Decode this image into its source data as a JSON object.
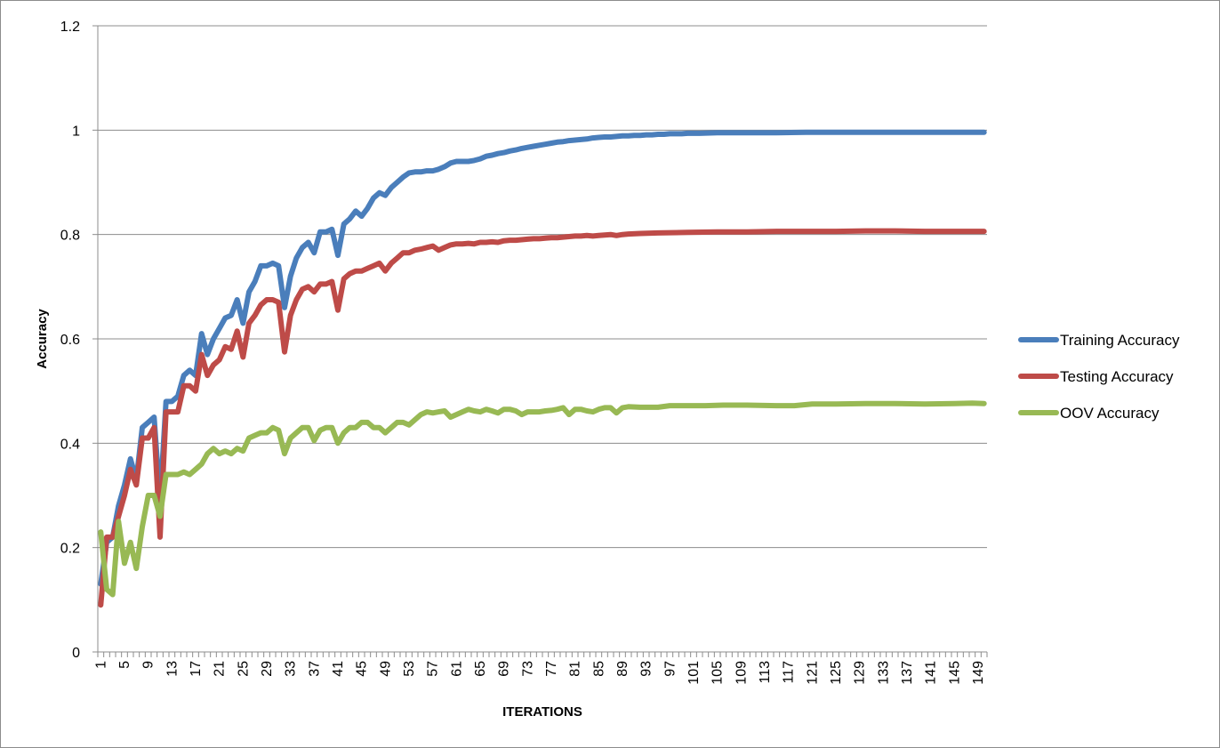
{
  "chart_data": {
    "type": "line",
    "title": "",
    "xlabel": "ITERATIONS",
    "ylabel": "Accuracy",
    "ylim": [
      0,
      1.2
    ],
    "yticks": [
      "0",
      "0.2",
      "0.4",
      "0.6",
      "0.8",
      "1",
      "1.2"
    ],
    "xlim": [
      1,
      150
    ],
    "xtick_labels": [
      "1",
      "5",
      "9",
      "13",
      "17",
      "21",
      "25",
      "29",
      "33",
      "37",
      "41",
      "45",
      "49",
      "53",
      "57",
      "61",
      "65",
      "69",
      "73",
      "77",
      "81",
      "85",
      "89",
      "93",
      "97",
      "101",
      "105",
      "109",
      "113",
      "117",
      "121",
      "125",
      "129",
      "133",
      "137",
      "141",
      "145",
      "149"
    ],
    "grid": "horizontal",
    "legend_position": "right",
    "colors": {
      "training": "#4a7ebb",
      "testing": "#be4b48",
      "oov": "#98b954",
      "grid": "#8c8c8c",
      "axis": "#8c8c8c"
    },
    "series": [
      {
        "name": "Training Accuracy",
        "color": "#4a7ebb",
        "points": [
          [
            1,
            0.13
          ],
          [
            2,
            0.21
          ],
          [
            3,
            0.22
          ],
          [
            4,
            0.28
          ],
          [
            5,
            0.32
          ],
          [
            6,
            0.37
          ],
          [
            7,
            0.33
          ],
          [
            8,
            0.43
          ],
          [
            9,
            0.44
          ],
          [
            10,
            0.45
          ],
          [
            11,
            0.29
          ],
          [
            12,
            0.48
          ],
          [
            13,
            0.48
          ],
          [
            14,
            0.49
          ],
          [
            15,
            0.53
          ],
          [
            16,
            0.54
          ],
          [
            17,
            0.53
          ],
          [
            18,
            0.61
          ],
          [
            19,
            0.57
          ],
          [
            20,
            0.6
          ],
          [
            21,
            0.62
          ],
          [
            22,
            0.64
          ],
          [
            23,
            0.645
          ],
          [
            24,
            0.675
          ],
          [
            25,
            0.63
          ],
          [
            26,
            0.69
          ],
          [
            27,
            0.71
          ],
          [
            28,
            0.74
          ],
          [
            29,
            0.74
          ],
          [
            30,
            0.745
          ],
          [
            31,
            0.74
          ],
          [
            32,
            0.66
          ],
          [
            33,
            0.72
          ],
          [
            34,
            0.755
          ],
          [
            35,
            0.775
          ],
          [
            36,
            0.785
          ],
          [
            37,
            0.765
          ],
          [
            38,
            0.805
          ],
          [
            39,
            0.805
          ],
          [
            40,
            0.81
          ],
          [
            41,
            0.76
          ],
          [
            42,
            0.82
          ],
          [
            43,
            0.83
          ],
          [
            44,
            0.845
          ],
          [
            45,
            0.835
          ],
          [
            46,
            0.85
          ],
          [
            47,
            0.87
          ],
          [
            48,
            0.88
          ],
          [
            49,
            0.875
          ],
          [
            50,
            0.89
          ],
          [
            51,
            0.9
          ],
          [
            52,
            0.91
          ],
          [
            53,
            0.918
          ],
          [
            54,
            0.92
          ],
          [
            55,
            0.92
          ],
          [
            56,
            0.922
          ],
          [
            57,
            0.922
          ],
          [
            58,
            0.925
          ],
          [
            59,
            0.93
          ],
          [
            60,
            0.937
          ],
          [
            61,
            0.94
          ],
          [
            62,
            0.94
          ],
          [
            63,
            0.94
          ],
          [
            64,
            0.942
          ],
          [
            65,
            0.945
          ],
          [
            66,
            0.95
          ],
          [
            67,
            0.952
          ],
          [
            68,
            0.955
          ],
          [
            69,
            0.957
          ],
          [
            70,
            0.96
          ],
          [
            71,
            0.962
          ],
          [
            72,
            0.965
          ],
          [
            73,
            0.967
          ],
          [
            74,
            0.969
          ],
          [
            75,
            0.971
          ],
          [
            76,
            0.973
          ],
          [
            77,
            0.975
          ],
          [
            78,
            0.977
          ],
          [
            79,
            0.978
          ],
          [
            80,
            0.98
          ],
          [
            81,
            0.981
          ],
          [
            82,
            0.982
          ],
          [
            83,
            0.983
          ],
          [
            84,
            0.985
          ],
          [
            85,
            0.986
          ],
          [
            86,
            0.987
          ],
          [
            87,
            0.987
          ],
          [
            88,
            0.988
          ],
          [
            89,
            0.989
          ],
          [
            90,
            0.989
          ],
          [
            91,
            0.99
          ],
          [
            92,
            0.99
          ],
          [
            93,
            0.991
          ],
          [
            94,
            0.991
          ],
          [
            95,
            0.992
          ],
          [
            96,
            0.992
          ],
          [
            97,
            0.993
          ],
          [
            98,
            0.993
          ],
          [
            99,
            0.993
          ],
          [
            100,
            0.994
          ],
          [
            102,
            0.994
          ],
          [
            105,
            0.995
          ],
          [
            110,
            0.995
          ],
          [
            115,
            0.995
          ],
          [
            120,
            0.996
          ],
          [
            130,
            0.996
          ],
          [
            140,
            0.996
          ],
          [
            150,
            0.996
          ]
        ]
      },
      {
        "name": "Testing Accuracy",
        "color": "#be4b48",
        "points": [
          [
            1,
            0.09
          ],
          [
            2,
            0.22
          ],
          [
            3,
            0.22
          ],
          [
            4,
            0.26
          ],
          [
            5,
            0.3
          ],
          [
            6,
            0.35
          ],
          [
            7,
            0.32
          ],
          [
            8,
            0.41
          ],
          [
            9,
            0.41
          ],
          [
            10,
            0.43
          ],
          [
            11,
            0.22
          ],
          [
            12,
            0.46
          ],
          [
            13,
            0.46
          ],
          [
            14,
            0.46
          ],
          [
            15,
            0.51
          ],
          [
            16,
            0.51
          ],
          [
            17,
            0.5
          ],
          [
            18,
            0.57
          ],
          [
            19,
            0.53
          ],
          [
            20,
            0.55
          ],
          [
            21,
            0.56
          ],
          [
            22,
            0.585
          ],
          [
            23,
            0.58
          ],
          [
            24,
            0.615
          ],
          [
            25,
            0.565
          ],
          [
            26,
            0.63
          ],
          [
            27,
            0.645
          ],
          [
            28,
            0.665
          ],
          [
            29,
            0.675
          ],
          [
            30,
            0.675
          ],
          [
            31,
            0.67
          ],
          [
            32,
            0.575
          ],
          [
            33,
            0.645
          ],
          [
            34,
            0.675
          ],
          [
            35,
            0.695
          ],
          [
            36,
            0.7
          ],
          [
            37,
            0.69
          ],
          [
            38,
            0.705
          ],
          [
            39,
            0.705
          ],
          [
            40,
            0.71
          ],
          [
            41,
            0.655
          ],
          [
            42,
            0.715
          ],
          [
            43,
            0.725
          ],
          [
            44,
            0.73
          ],
          [
            45,
            0.73
          ],
          [
            46,
            0.735
          ],
          [
            47,
            0.74
          ],
          [
            48,
            0.745
          ],
          [
            49,
            0.73
          ],
          [
            50,
            0.745
          ],
          [
            51,
            0.755
          ],
          [
            52,
            0.765
          ],
          [
            53,
            0.765
          ],
          [
            54,
            0.77
          ],
          [
            55,
            0.772
          ],
          [
            56,
            0.775
          ],
          [
            57,
            0.778
          ],
          [
            58,
            0.77
          ],
          [
            59,
            0.775
          ],
          [
            60,
            0.78
          ],
          [
            61,
            0.782
          ],
          [
            62,
            0.782
          ],
          [
            63,
            0.783
          ],
          [
            64,
            0.782
          ],
          [
            65,
            0.785
          ],
          [
            66,
            0.785
          ],
          [
            67,
            0.786
          ],
          [
            68,
            0.785
          ],
          [
            69,
            0.788
          ],
          [
            70,
            0.789
          ],
          [
            71,
            0.789
          ],
          [
            72,
            0.79
          ],
          [
            73,
            0.791
          ],
          [
            74,
            0.792
          ],
          [
            75,
            0.792
          ],
          [
            76,
            0.793
          ],
          [
            77,
            0.794
          ],
          [
            78,
            0.794
          ],
          [
            79,
            0.795
          ],
          [
            80,
            0.796
          ],
          [
            81,
            0.797
          ],
          [
            82,
            0.797
          ],
          [
            83,
            0.798
          ],
          [
            84,
            0.797
          ],
          [
            85,
            0.798
          ],
          [
            86,
            0.799
          ],
          [
            87,
            0.8
          ],
          [
            88,
            0.798
          ],
          [
            89,
            0.8
          ],
          [
            90,
            0.801
          ],
          [
            92,
            0.802
          ],
          [
            95,
            0.803
          ],
          [
            100,
            0.804
          ],
          [
            105,
            0.805
          ],
          [
            110,
            0.805
          ],
          [
            115,
            0.806
          ],
          [
            120,
            0.806
          ],
          [
            125,
            0.806
          ],
          [
            130,
            0.807
          ],
          [
            135,
            0.807
          ],
          [
            140,
            0.806
          ],
          [
            145,
            0.806
          ],
          [
            150,
            0.806
          ]
        ]
      },
      {
        "name": "OOV Accuracy",
        "color": "#98b954",
        "points": [
          [
            1,
            0.23
          ],
          [
            2,
            0.12
          ],
          [
            3,
            0.11
          ],
          [
            4,
            0.25
          ],
          [
            5,
            0.17
          ],
          [
            6,
            0.21
          ],
          [
            7,
            0.16
          ],
          [
            8,
            0.24
          ],
          [
            9,
            0.3
          ],
          [
            10,
            0.3
          ],
          [
            11,
            0.26
          ],
          [
            12,
            0.34
          ],
          [
            13,
            0.34
          ],
          [
            14,
            0.34
          ],
          [
            15,
            0.345
          ],
          [
            16,
            0.34
          ],
          [
            17,
            0.35
          ],
          [
            18,
            0.36
          ],
          [
            19,
            0.38
          ],
          [
            20,
            0.39
          ],
          [
            21,
            0.38
          ],
          [
            22,
            0.385
          ],
          [
            23,
            0.38
          ],
          [
            24,
            0.39
          ],
          [
            25,
            0.385
          ],
          [
            26,
            0.41
          ],
          [
            27,
            0.415
          ],
          [
            28,
            0.42
          ],
          [
            29,
            0.42
          ],
          [
            30,
            0.43
          ],
          [
            31,
            0.425
          ],
          [
            32,
            0.38
          ],
          [
            33,
            0.41
          ],
          [
            34,
            0.42
          ],
          [
            35,
            0.43
          ],
          [
            36,
            0.43
          ],
          [
            37,
            0.405
          ],
          [
            38,
            0.425
          ],
          [
            39,
            0.43
          ],
          [
            40,
            0.43
          ],
          [
            41,
            0.4
          ],
          [
            42,
            0.42
          ],
          [
            43,
            0.43
          ],
          [
            44,
            0.43
          ],
          [
            45,
            0.44
          ],
          [
            46,
            0.44
          ],
          [
            47,
            0.43
          ],
          [
            48,
            0.43
          ],
          [
            49,
            0.42
          ],
          [
            50,
            0.43
          ],
          [
            51,
            0.44
          ],
          [
            52,
            0.44
          ],
          [
            53,
            0.435
          ],
          [
            54,
            0.445
          ],
          [
            55,
            0.455
          ],
          [
            56,
            0.46
          ],
          [
            57,
            0.458
          ],
          [
            58,
            0.46
          ],
          [
            59,
            0.462
          ],
          [
            60,
            0.45
          ],
          [
            61,
            0.455
          ],
          [
            62,
            0.46
          ],
          [
            63,
            0.465
          ],
          [
            64,
            0.462
          ],
          [
            65,
            0.46
          ],
          [
            66,
            0.465
          ],
          [
            67,
            0.462
          ],
          [
            68,
            0.458
          ],
          [
            69,
            0.465
          ],
          [
            70,
            0.465
          ],
          [
            71,
            0.462
          ],
          [
            72,
            0.455
          ],
          [
            73,
            0.46
          ],
          [
            74,
            0.46
          ],
          [
            75,
            0.46
          ],
          [
            76,
            0.462
          ],
          [
            77,
            0.463
          ],
          [
            78,
            0.465
          ],
          [
            79,
            0.468
          ],
          [
            80,
            0.455
          ],
          [
            81,
            0.465
          ],
          [
            82,
            0.465
          ],
          [
            83,
            0.462
          ],
          [
            84,
            0.46
          ],
          [
            85,
            0.465
          ],
          [
            86,
            0.468
          ],
          [
            87,
            0.468
          ],
          [
            88,
            0.458
          ],
          [
            89,
            0.468
          ],
          [
            90,
            0.47
          ],
          [
            92,
            0.469
          ],
          [
            95,
            0.469
          ],
          [
            97,
            0.472
          ],
          [
            100,
            0.472
          ],
          [
            103,
            0.472
          ],
          [
            106,
            0.473
          ],
          [
            110,
            0.473
          ],
          [
            115,
            0.472
          ],
          [
            118,
            0.472
          ],
          [
            121,
            0.475
          ],
          [
            125,
            0.475
          ],
          [
            130,
            0.476
          ],
          [
            135,
            0.476
          ],
          [
            140,
            0.475
          ],
          [
            145,
            0.476
          ],
          [
            148,
            0.477
          ],
          [
            150,
            0.476
          ]
        ]
      }
    ]
  }
}
